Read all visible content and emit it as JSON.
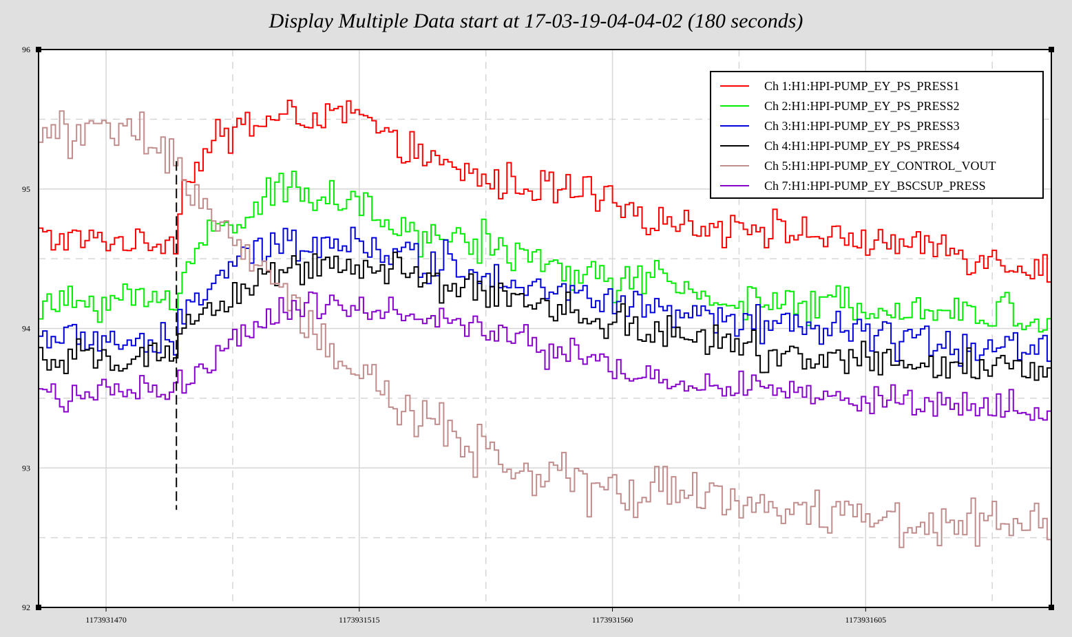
{
  "title": "Display Multiple Data start at 17-03-19-04-04-02 (180 seconds)",
  "colors": {
    "background": "#e0e0e0",
    "plot_background": "#ffffff",
    "grid": "#d6d6d6"
  },
  "chart_data": {
    "type": "line",
    "step": true,
    "title": "Display Multiple Data start at 17-03-19-04-04-02 (180 seconds)",
    "xlabel": "",
    "ylabel": "",
    "xlim": [
      1173931458,
      1173931638
    ],
    "ylim": [
      92,
      96
    ],
    "x_ticks": [
      1173931470,
      1173931515,
      1173931560,
      1173931605
    ],
    "x_tick_labels": [
      "1173931470",
      "1173931515",
      "1173931560",
      "1173931605"
    ],
    "y_ticks": [
      92,
      93,
      94,
      95,
      96
    ],
    "y_tick_labels": [
      "92",
      "93",
      "94",
      "95",
      "96"
    ],
    "grid": true,
    "legend_position": "top-right",
    "marker": {
      "x": 1173931482.5,
      "y_from": 92.7,
      "y_to": 95.2,
      "style": "dashed"
    },
    "series": [
      {
        "name": "Ch 1:H1:HPI-PUMP_EY_PS_PRESS1",
        "color": "#ff0000",
        "points": [
          [
            1173931458,
            94.65
          ],
          [
            1173931470,
            94.63
          ],
          [
            1173931482,
            94.62
          ],
          [
            1173931483,
            95.0
          ],
          [
            1173931488,
            95.3
          ],
          [
            1173931494,
            95.45
          ],
          [
            1173931500,
            95.5
          ],
          [
            1173931507,
            95.52
          ],
          [
            1173931515,
            95.52
          ],
          [
            1173931520,
            95.35
          ],
          [
            1173931525,
            95.25
          ],
          [
            1173931532,
            95.12
          ],
          [
            1173931540,
            95.05
          ],
          [
            1173931548,
            94.98
          ],
          [
            1173931555,
            94.95
          ],
          [
            1173931562,
            94.82
          ],
          [
            1173931570,
            94.78
          ],
          [
            1173931578,
            94.72
          ],
          [
            1173931585,
            94.75
          ],
          [
            1173931592,
            94.68
          ],
          [
            1173931600,
            94.65
          ],
          [
            1173931608,
            94.62
          ],
          [
            1173931615,
            94.6
          ],
          [
            1173931622,
            94.55
          ],
          [
            1173931630,
            94.48
          ],
          [
            1173931638,
            94.4
          ]
        ]
      },
      {
        "name": "Ch 2:H1:HPI-PUMP_EY_PS_PRESS2",
        "color": "#00ee00",
        "points": [
          [
            1173931458,
            94.15
          ],
          [
            1173931470,
            94.22
          ],
          [
            1173931482,
            94.2
          ],
          [
            1173931483,
            94.4
          ],
          [
            1173931488,
            94.65
          ],
          [
            1173931494,
            94.82
          ],
          [
            1173931500,
            94.95
          ],
          [
            1173931507,
            95.0
          ],
          [
            1173931515,
            94.9
          ],
          [
            1173931520,
            94.72
          ],
          [
            1173931525,
            94.68
          ],
          [
            1173931532,
            94.65
          ],
          [
            1173931540,
            94.58
          ],
          [
            1173931548,
            94.45
          ],
          [
            1173931555,
            94.4
          ],
          [
            1173931562,
            94.35
          ],
          [
            1173931570,
            94.3
          ],
          [
            1173931578,
            94.22
          ],
          [
            1173931585,
            94.2
          ],
          [
            1173931592,
            94.18
          ],
          [
            1173931600,
            94.15
          ],
          [
            1173931608,
            94.18
          ],
          [
            1173931615,
            94.15
          ],
          [
            1173931622,
            94.1
          ],
          [
            1173931630,
            94.1
          ],
          [
            1173931638,
            94.05
          ]
        ]
      },
      {
        "name": "Ch 3:H1:HPI-PUMP_EY_PS_PRESS3",
        "color": "#0000dd",
        "points": [
          [
            1173931458,
            93.95
          ],
          [
            1173931470,
            93.92
          ],
          [
            1173931482,
            93.85
          ],
          [
            1173931483,
            94.1
          ],
          [
            1173931488,
            94.3
          ],
          [
            1173931494,
            94.5
          ],
          [
            1173931500,
            94.6
          ],
          [
            1173931507,
            94.65
          ],
          [
            1173931515,
            94.62
          ],
          [
            1173931520,
            94.55
          ],
          [
            1173931525,
            94.5
          ],
          [
            1173931532,
            94.45
          ],
          [
            1173931540,
            94.38
          ],
          [
            1173931548,
            94.28
          ],
          [
            1173931555,
            94.22
          ],
          [
            1173931562,
            94.18
          ],
          [
            1173931570,
            94.1
          ],
          [
            1173931578,
            94.05
          ],
          [
            1173931585,
            94.02
          ],
          [
            1173931592,
            94.0
          ],
          [
            1173931600,
            93.98
          ],
          [
            1173931608,
            93.95
          ],
          [
            1173931615,
            93.92
          ],
          [
            1173931622,
            93.9
          ],
          [
            1173931630,
            93.88
          ],
          [
            1173931638,
            93.85
          ]
        ]
      },
      {
        "name": "Ch 4:H1:HPI-PUMP_EY_PS_PRESS4",
        "color": "#000000",
        "points": [
          [
            1173931458,
            93.75
          ],
          [
            1173931470,
            93.78
          ],
          [
            1173931482,
            93.8
          ],
          [
            1173931483,
            93.9
          ],
          [
            1173931488,
            94.1
          ],
          [
            1173931494,
            94.3
          ],
          [
            1173931500,
            94.45
          ],
          [
            1173931507,
            94.45
          ],
          [
            1173931515,
            94.45
          ],
          [
            1173931520,
            94.4
          ],
          [
            1173931525,
            94.35
          ],
          [
            1173931532,
            94.28
          ],
          [
            1173931540,
            94.22
          ],
          [
            1173931548,
            94.15
          ],
          [
            1173931555,
            94.08
          ],
          [
            1173931562,
            94.02
          ],
          [
            1173931570,
            93.95
          ],
          [
            1173931578,
            93.9
          ],
          [
            1173931585,
            93.85
          ],
          [
            1173931592,
            93.8
          ],
          [
            1173931600,
            93.78
          ],
          [
            1173931608,
            93.75
          ],
          [
            1173931615,
            93.72
          ],
          [
            1173931622,
            93.7
          ],
          [
            1173931630,
            93.72
          ],
          [
            1173931638,
            93.7
          ]
        ]
      },
      {
        "name": "Ch 5:H1:HPI-PUMP_EY_CONTROL_VOUT",
        "color": "#c08c8c",
        "points": [
          [
            1173931458,
            95.4
          ],
          [
            1173931470,
            95.42
          ],
          [
            1173931478,
            95.35
          ],
          [
            1173931482,
            95.15
          ],
          [
            1173931486,
            94.95
          ],
          [
            1173931490,
            94.75
          ],
          [
            1173931494,
            94.55
          ],
          [
            1173931500,
            94.3
          ],
          [
            1173931505,
            94.05
          ],
          [
            1173931510,
            93.85
          ],
          [
            1173931515,
            93.65
          ],
          [
            1173931520,
            93.5
          ],
          [
            1173931525,
            93.35
          ],
          [
            1173931532,
            93.2
          ],
          [
            1173931540,
            93.05
          ],
          [
            1173931548,
            92.95
          ],
          [
            1173931555,
            92.85
          ],
          [
            1173931562,
            92.82
          ],
          [
            1173931570,
            92.85
          ],
          [
            1173931578,
            92.8
          ],
          [
            1173931585,
            92.72
          ],
          [
            1173931592,
            92.7
          ],
          [
            1173931600,
            92.68
          ],
          [
            1173931608,
            92.65
          ],
          [
            1173931615,
            92.62
          ],
          [
            1173931622,
            92.62
          ],
          [
            1173931630,
            92.58
          ],
          [
            1173931638,
            92.6
          ]
        ]
      },
      {
        "name": "Ch 7:H1:HPI-PUMP_EY_BSCSUP_PRESS",
        "color": "#8800cc",
        "points": [
          [
            1173931458,
            93.55
          ],
          [
            1173931470,
            93.52
          ],
          [
            1173931482,
            93.55
          ],
          [
            1173931483,
            93.58
          ],
          [
            1173931488,
            93.75
          ],
          [
            1173931494,
            93.95
          ],
          [
            1173931500,
            94.1
          ],
          [
            1173931507,
            94.2
          ],
          [
            1173931515,
            94.15
          ],
          [
            1173931520,
            94.12
          ],
          [
            1173931525,
            94.08
          ],
          [
            1173931532,
            94.02
          ],
          [
            1173931540,
            93.95
          ],
          [
            1173931548,
            93.85
          ],
          [
            1173931555,
            93.75
          ],
          [
            1173931562,
            93.7
          ],
          [
            1173931570,
            93.62
          ],
          [
            1173931578,
            93.6
          ],
          [
            1173931585,
            93.55
          ],
          [
            1173931592,
            93.52
          ],
          [
            1173931600,
            93.5
          ],
          [
            1173931608,
            93.48
          ],
          [
            1173931615,
            93.48
          ],
          [
            1173931622,
            93.45
          ],
          [
            1173931630,
            93.42
          ],
          [
            1173931638,
            93.4
          ]
        ]
      }
    ]
  }
}
